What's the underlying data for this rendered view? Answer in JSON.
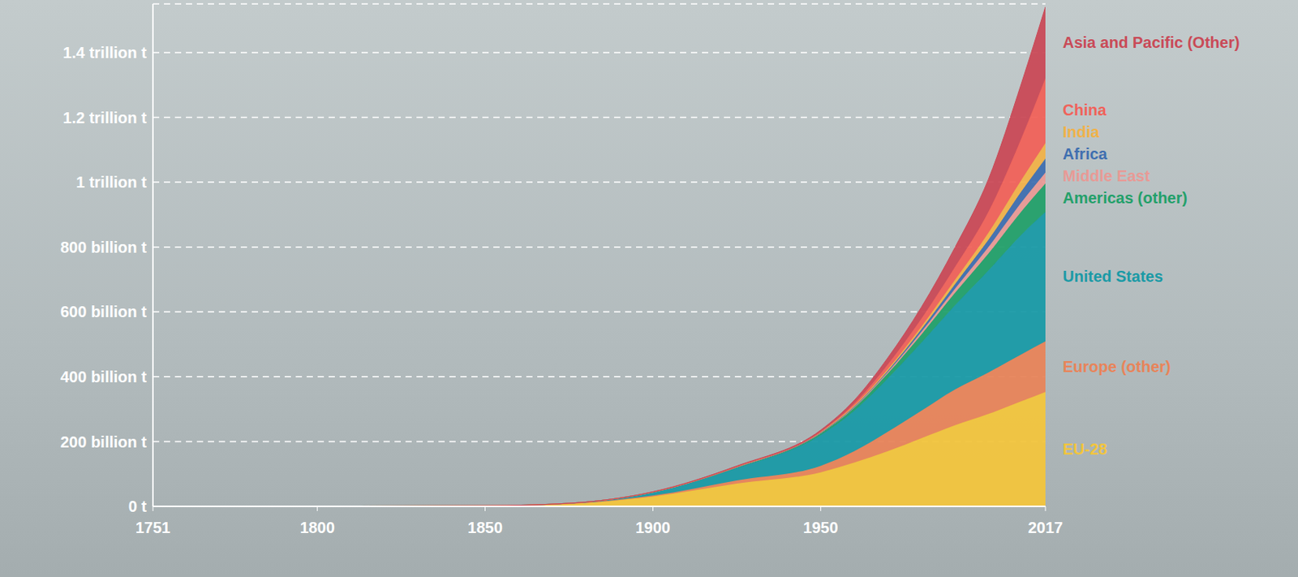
{
  "chart_data": {
    "type": "area",
    "stacked": true,
    "grid": true,
    "legend": "right",
    "x": [
      1751,
      1800,
      1850,
      1875,
      1900,
      1925,
      1950,
      1960,
      1970,
      1980,
      1990,
      2000,
      2010,
      2017
    ],
    "xlim": [
      1751,
      2017
    ],
    "xticks": [
      1751,
      1800,
      1850,
      1900,
      1950,
      2017
    ],
    "ylim": [
      0,
      1550
    ],
    "yticks": [
      {
        "value": 0,
        "label": "0 t"
      },
      {
        "value": 200,
        "label": "200 billion t"
      },
      {
        "value": 400,
        "label": "400 billion t"
      },
      {
        "value": 600,
        "label": "600 billion t"
      },
      {
        "value": 800,
        "label": "800 billion t"
      },
      {
        "value": 1000,
        "label": "1 trillion t"
      },
      {
        "value": 1200,
        "label": "1.2 trillion t"
      },
      {
        "value": 1400,
        "label": "1.4 trillion t"
      }
    ],
    "series": [
      {
        "name": "EU-28",
        "color": "#f2c53d",
        "values": [
          0,
          1,
          2,
          8,
          30,
          70,
          105,
          135,
          170,
          210,
          250,
          285,
          325,
          353
        ]
      },
      {
        "name": "Europe (other)",
        "color": "#e8845a",
        "values": [
          0,
          0,
          0,
          0.5,
          3,
          10,
          20,
          35,
          60,
          85,
          110,
          128,
          145,
          156
        ]
      },
      {
        "name": "United States",
        "color": "#1a9aa6",
        "values": [
          0,
          0,
          0,
          1,
          10,
          38,
          95,
          125,
          165,
          210,
          260,
          315,
          370,
          399
        ]
      },
      {
        "name": "Americas (other)",
        "color": "#23a06a",
        "values": [
          0,
          0,
          0,
          0,
          1,
          2,
          5,
          9,
          15,
          25,
          38,
          52,
          72,
          88
        ]
      },
      {
        "name": "Middle East",
        "color": "#e89a96",
        "values": [
          0,
          0,
          0,
          0,
          0,
          0.5,
          1,
          2,
          4,
          8,
          13,
          20,
          28,
          34
        ]
      },
      {
        "name": "Africa",
        "color": "#3f6fb0",
        "values": [
          0,
          0,
          0,
          0,
          0,
          0.5,
          1,
          2,
          4,
          8,
          14,
          22,
          34,
          43
        ]
      },
      {
        "name": "India",
        "color": "#f0b24a",
        "values": [
          0,
          0,
          0,
          0,
          0,
          1,
          2,
          3,
          5,
          8,
          13,
          22,
          36,
          48
        ]
      },
      {
        "name": "China",
        "color": "#f0625a",
        "values": [
          0,
          0,
          0,
          0,
          0,
          0.5,
          1,
          6,
          15,
          25,
          40,
          65,
          130,
          200
        ]
      },
      {
        "name": "Asia and Pacific (Other)",
        "color": "#c94a57",
        "values": [
          0,
          0,
          0,
          0,
          1,
          2,
          5,
          10,
          20,
          35,
          60,
          100,
          170,
          220
        ]
      }
    ]
  }
}
